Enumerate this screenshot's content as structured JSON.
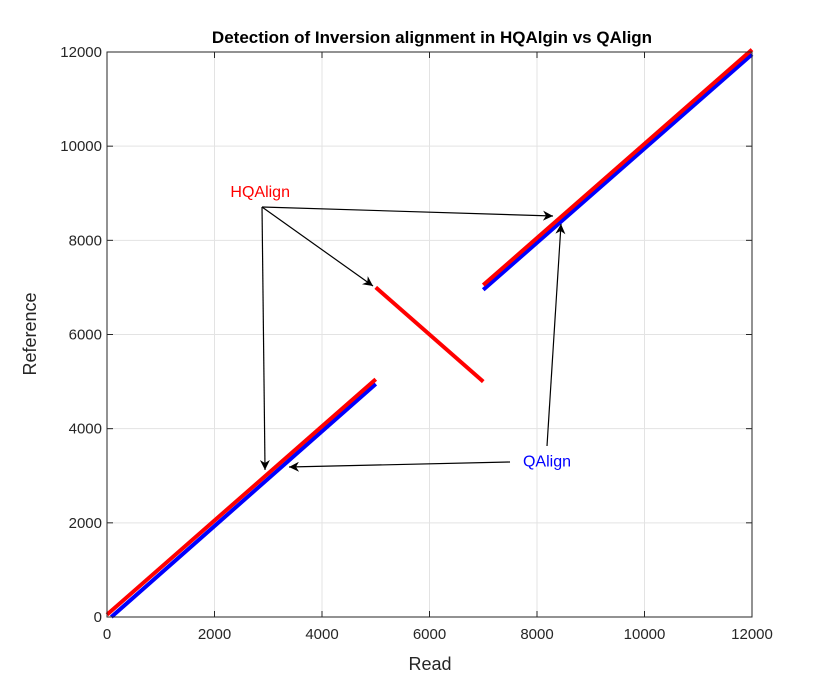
{
  "chart_data": {
    "type": "line",
    "title": "Detection of Inversion alignment in HQAlgin vs QAlign",
    "xlabel": "Read",
    "ylabel": "Reference",
    "xlim": [
      0,
      12000
    ],
    "ylim": [
      0,
      12000
    ],
    "xticks": [
      0,
      2000,
      4000,
      6000,
      8000,
      10000,
      12000
    ],
    "yticks": [
      0,
      2000,
      4000,
      6000,
      8000,
      10000,
      12000
    ],
    "grid": true,
    "series": [
      {
        "color": "#0000ff",
        "segments": [
          [
            [
              80,
              0
            ],
            [
              5000,
              4950
            ]
          ],
          [
            [
              7000,
              6950
            ],
            [
              12000,
              11950
            ]
          ]
        ]
      },
      {
        "color": "#ff0000",
        "segments": [
          [
            [
              0,
              50
            ],
            [
              5000,
              5050
            ]
          ],
          [
            [
              5000,
              7000
            ],
            [
              7000,
              5000
            ]
          ],
          [
            [
              7000,
              7050
            ],
            [
              12000,
              12050
            ]
          ]
        ]
      }
    ],
    "annotations": [
      {
        "text": "HQAlign",
        "color": "#ff0000",
        "x": 2850,
        "y": 8920,
        "arrows": [
          {
            "from": [
              2884,
              8708
            ],
            "to": [
              8298,
              8517
            ]
          },
          {
            "from": [
              2884,
              8708
            ],
            "to": [
              4949,
              7030
            ]
          },
          {
            "from": [
              2884,
              8708
            ],
            "to": [
              2940,
              3122
            ]
          }
        ]
      },
      {
        "text": "QAlign",
        "color": "#0000ff",
        "x": 8186,
        "y": 3200,
        "arrows": [
          {
            "from": [
              8186,
              3632
            ],
            "to": [
              8447,
              8347
            ]
          },
          {
            "from": [
              7498,
              3292
            ],
            "to": [
              3386,
              3186
            ]
          }
        ]
      }
    ]
  }
}
